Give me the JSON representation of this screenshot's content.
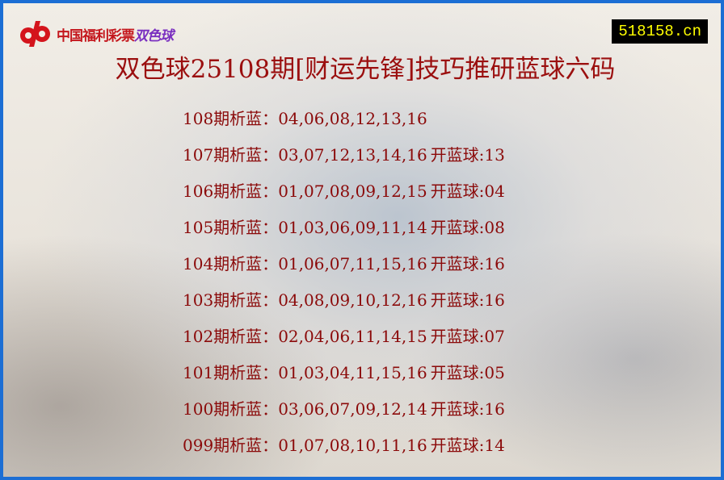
{
  "logo": {
    "text": "中国福利彩票",
    "sub": "双色球"
  },
  "site": "518158.cn",
  "title": "双色球25108期[财运先锋]技巧推研蓝球六码",
  "rows": [
    {
      "label": "108期析蓝：",
      "numbers": "04,06,08,12,13,16",
      "result": ""
    },
    {
      "label": "107期析蓝：",
      "numbers": "03,07,12,13,14,16",
      "result": "开蓝球:13"
    },
    {
      "label": "106期析蓝：",
      "numbers": "01,07,08,09,12,15",
      "result": "开蓝球:04"
    },
    {
      "label": "105期析蓝：",
      "numbers": "01,03,06,09,11,14",
      "result": "开蓝球:08"
    },
    {
      "label": "104期析蓝：",
      "numbers": "01,06,07,11,15,16",
      "result": "开蓝球:16"
    },
    {
      "label": "103期析蓝：",
      "numbers": "04,08,09,10,12,16",
      "result": "开蓝球:16"
    },
    {
      "label": "102期析蓝：",
      "numbers": "02,04,06,11,14,15",
      "result": "开蓝球:07"
    },
    {
      "label": "101期析蓝：",
      "numbers": "01,03,04,11,15,16",
      "result": "开蓝球:05"
    },
    {
      "label": "100期析蓝：",
      "numbers": "03,06,07,09,12,14",
      "result": "开蓝球:16"
    },
    {
      "label": "099期析蓝：",
      "numbers": "01,07,08,10,11,16",
      "result": "开蓝球:14"
    }
  ]
}
